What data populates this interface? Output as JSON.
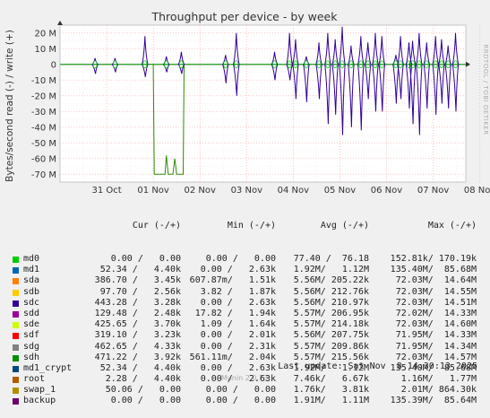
{
  "chart_data": {
    "type": "line",
    "title": "Throughput per device - by week",
    "ylabel": "Bytes/second read (-) / write (+)",
    "side_label": "RRDTOOL / TOBI OETIKER",
    "yticks": [
      "20 M",
      "10 M",
      "0",
      "-10 M",
      "-20 M",
      "-30 M",
      "-40 M",
      "-50 M",
      "-60 M",
      "-70 M"
    ],
    "ylim": [
      -75,
      25
    ],
    "xticks": [
      "31 Oct",
      "01 Nov",
      "02 Nov",
      "03 Nov",
      "04 Nov",
      "05 Nov",
      "06 Nov",
      "07 Nov",
      "08 Nov"
    ],
    "x_range_days": [
      -1.0,
      7.7
    ],
    "green_series": {
      "name": "sdh",
      "color": "#2e8b00",
      "points": [
        [
          1.0,
          0
        ],
        [
          1.02,
          -70
        ],
        [
          1.25,
          -70
        ],
        [
          1.28,
          -58
        ],
        [
          1.32,
          -70
        ],
        [
          1.42,
          -70
        ],
        [
          1.46,
          -60
        ],
        [
          1.5,
          -70
        ],
        [
          1.64,
          -70
        ],
        [
          1.66,
          0
        ]
      ]
    },
    "purple_bursts": [
      {
        "x": -0.25,
        "up": 4,
        "down": -6
      },
      {
        "x": 0.18,
        "up": 4,
        "down": -5
      },
      {
        "x": 0.82,
        "up": 18,
        "down": -8
      },
      {
        "x": 1.28,
        "up": 5,
        "down": -5
      },
      {
        "x": 1.6,
        "up": 8,
        "down": -6
      },
      {
        "x": 2.55,
        "up": 6,
        "down": -12
      },
      {
        "x": 2.78,
        "up": 20,
        "down": -20
      },
      {
        "x": 3.6,
        "up": 8,
        "down": -10
      },
      {
        "x": 3.92,
        "up": 20,
        "down": -10
      },
      {
        "x": 4.05,
        "up": 16,
        "down": -22
      },
      {
        "x": 4.28,
        "up": 5,
        "down": -24
      },
      {
        "x": 4.55,
        "up": 14,
        "down": -22
      },
      {
        "x": 4.74,
        "up": 20,
        "down": -38
      },
      {
        "x": 4.9,
        "up": 16,
        "down": -32
      },
      {
        "x": 5.05,
        "up": 24,
        "down": -45
      },
      {
        "x": 5.24,
        "up": 12,
        "down": -40
      },
      {
        "x": 5.45,
        "up": 18,
        "down": -42
      },
      {
        "x": 5.6,
        "up": 14,
        "down": -22
      },
      {
        "x": 5.76,
        "up": 20,
        "down": -30
      },
      {
        "x": 5.9,
        "up": 18,
        "down": -30
      },
      {
        "x": 6.2,
        "up": 6,
        "down": -25
      },
      {
        "x": 6.3,
        "up": 18,
        "down": -22
      },
      {
        "x": 6.48,
        "up": 14,
        "down": -28
      },
      {
        "x": 6.56,
        "up": 15,
        "down": -38
      },
      {
        "x": 6.7,
        "up": 20,
        "down": -45
      },
      {
        "x": 6.86,
        "up": 14,
        "down": -28
      },
      {
        "x": 7.05,
        "up": 18,
        "down": -32
      },
      {
        "x": 7.18,
        "up": 16,
        "down": -25
      },
      {
        "x": 7.32,
        "up": 12,
        "down": -28
      },
      {
        "x": 7.48,
        "up": 20,
        "down": -30
      }
    ]
  },
  "legend": {
    "headers": {
      "cur": "Cur (-/+)",
      "min": "Min (-/+)",
      "avg": "Avg (-/+)",
      "max": "Max (-/+)"
    },
    "rows": [
      {
        "name": "md0",
        "color": "#00cc00",
        "cur": "0.00 /   0.00",
        "min": "0.00 /   0.00",
        "avg": "77.40 /  76.18",
        "max": "152.81k/ 170.19k"
      },
      {
        "name": "md1",
        "color": "#0066b3",
        "cur": "52.34 /   4.40k",
        "min": "0.00 /   2.63k",
        "avg": "1.92M/   1.12M",
        "max": "135.40M/  85.68M"
      },
      {
        "name": "sda",
        "color": "#ff8000",
        "cur": "386.70 /   3.45k",
        "min": "607.87m/   1.51k",
        "avg": "5.56M/ 205.22k",
        "max": "72.03M/  14.64M"
      },
      {
        "name": "sdb",
        "color": "#ffcc00",
        "cur": "97.70 /   2.56k",
        "min": "3.82 /   1.87k",
        "avg": "5.56M/ 212.76k",
        "max": "72.03M/  14.55M"
      },
      {
        "name": "sdc",
        "color": "#330099",
        "cur": "443.28 /   3.28k",
        "min": "0.00 /   2.63k",
        "avg": "5.56M/ 210.97k",
        "max": "72.03M/  14.51M"
      },
      {
        "name": "sdd",
        "color": "#990099",
        "cur": "129.48 /   2.48k",
        "min": "17.82 /   1.94k",
        "avg": "5.57M/ 206.95k",
        "max": "72.02M/  14.33M"
      },
      {
        "name": "sde",
        "color": "#ccff00",
        "cur": "425.65 /   3.70k",
        "min": "1.09 /   1.64k",
        "avg": "5.57M/ 214.18k",
        "max": "72.03M/  14.60M"
      },
      {
        "name": "sdf",
        "color": "#ff0000",
        "cur": "319.10 /   3.23k",
        "min": "0.00 /   2.01k",
        "avg": "5.56M/ 207.75k",
        "max": "71.95M/  14.33M"
      },
      {
        "name": "sdg",
        "color": "#808080",
        "cur": "462.65 /   4.33k",
        "min": "0.00 /   2.31k",
        "avg": "5.57M/ 209.86k",
        "max": "71.95M/  14.34M"
      },
      {
        "name": "sdh",
        "color": "#008f00",
        "cur": "471.22 /   3.92k",
        "min": "561.11m/   2.04k",
        "avg": "5.57M/ 215.56k",
        "max": "72.03M/  14.57M"
      },
      {
        "name": "md1_crypt",
        "color": "#00487d",
        "cur": "52.34 /   4.40k",
        "min": "0.00 /   2.63k",
        "avg": "1.92M/   1.12M",
        "max": "135.40M/  85.68M"
      },
      {
        "name": "root",
        "color": "#b35a00",
        "cur": "2.28 /   4.40k",
        "min": "0.00 /   2.63k",
        "avg": "7.46k/   6.67k",
        "max": "1.16M/   1.77M"
      },
      {
        "name": "swap_1",
        "color": "#b38f00",
        "cur": "50.06 /   0.00",
        "min": "0.00 /   0.00",
        "avg": "1.76k/   3.81k",
        "max": "2.01M/ 864.30k"
      },
      {
        "name": "backup",
        "color": "#6b006b",
        "cur": "0.00 /   0.00",
        "min": "0.00 /   0.00",
        "avg": "1.91M/   1.11M",
        "max": "135.39M/  85.64M"
      }
    ]
  },
  "last_update": "Last update: Sat Nov  8 14:30:13 2025",
  "footer": "Munin 2.0.73"
}
